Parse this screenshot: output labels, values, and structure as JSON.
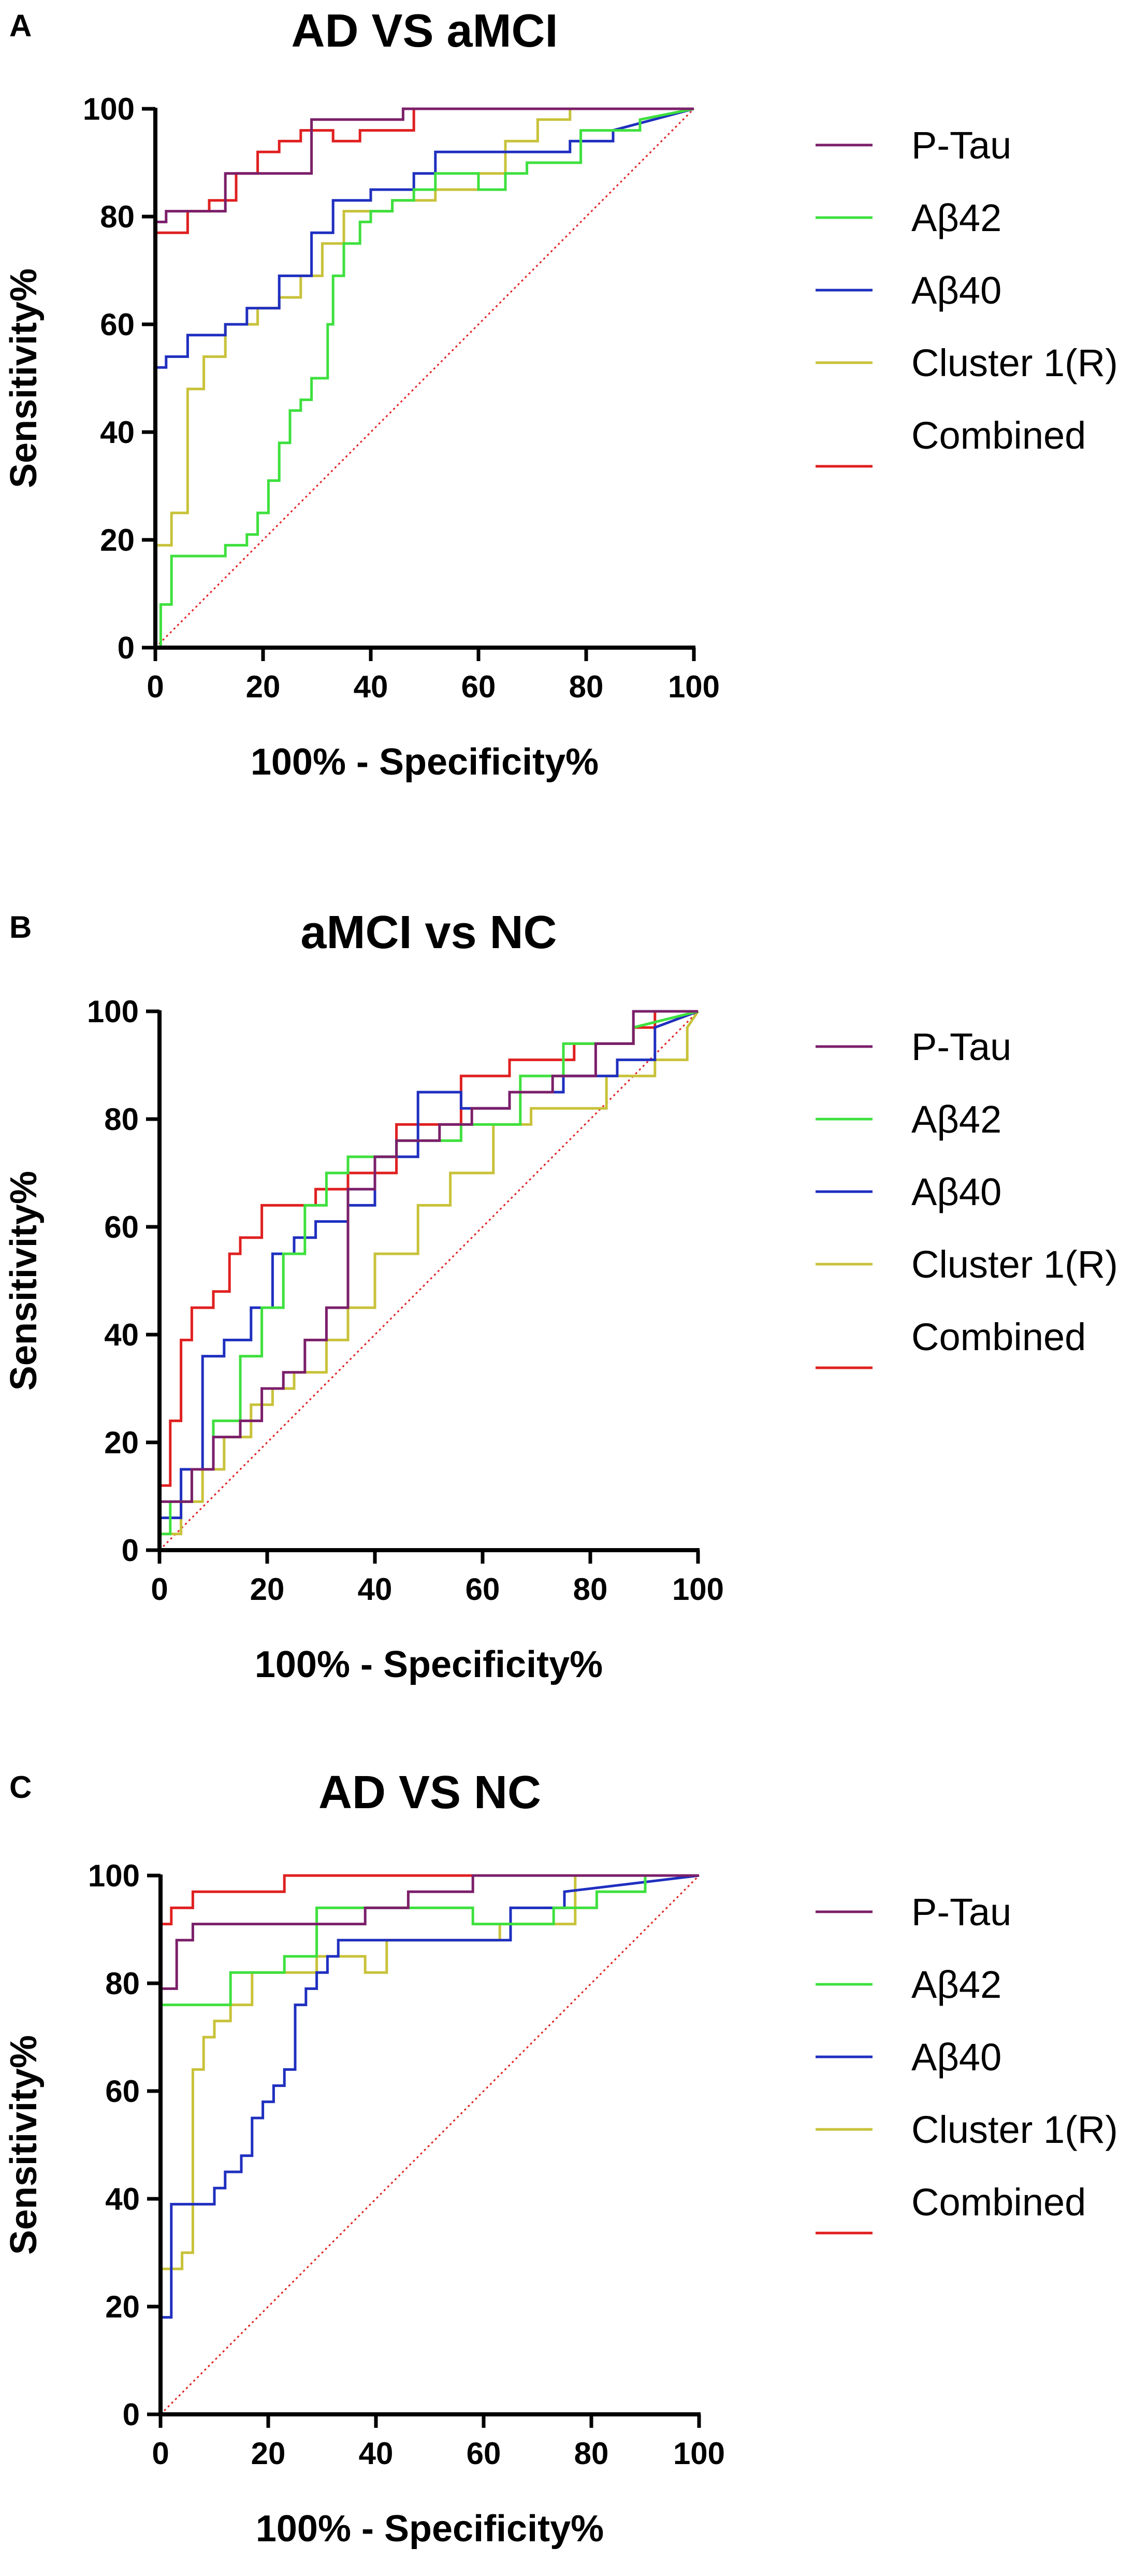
{
  "colors": {
    "ptau": "#7b1f6a",
    "abeta42": "#3ee03e",
    "abeta40": "#1f2fbf",
    "cluster1": "#c8c23a",
    "combined": "#e02020",
    "reference": "#e02020"
  },
  "chart_data": [
    {
      "panel": "A",
      "type": "line",
      "title": "AD VS aMCI",
      "xlabel": "100% - Specificity%",
      "ylabel": "Sensitivity%",
      "xlim": [
        0,
        100
      ],
      "ylim": [
        0,
        100
      ],
      "xticks": [
        "0",
        "20",
        "40",
        "60",
        "80",
        "100"
      ],
      "yticks": [
        "0",
        "20",
        "40",
        "60",
        "80",
        "100"
      ],
      "legend_position": "right",
      "reference_diagonal": true,
      "series": [
        {
          "name": "P-Tau",
          "color_key": "ptau",
          "x": [
            0,
            0,
            2,
            2,
            13,
            13,
            29,
            29,
            46,
            46,
            100
          ],
          "y": [
            0,
            79,
            79,
            81,
            81,
            88,
            88,
            98,
            98,
            100,
            100
          ]
        },
        {
          "name": "Aβ42",
          "color_key": "abeta42",
          "x": [
            0,
            1,
            1,
            3,
            3,
            13,
            13,
            17,
            17,
            19,
            19,
            21,
            21,
            23,
            23,
            25,
            25,
            27,
            27,
            29,
            29,
            32,
            32,
            33,
            33,
            35,
            35,
            38,
            38,
            40,
            40,
            44,
            44,
            48,
            48,
            52,
            52,
            60,
            60,
            65,
            65,
            69,
            69,
            79,
            79,
            90,
            90,
            100
          ],
          "y": [
            0,
            0,
            8,
            8,
            17,
            17,
            19,
            19,
            21,
            21,
            25,
            25,
            31,
            31,
            38,
            38,
            44,
            44,
            46,
            46,
            50,
            50,
            60,
            60,
            69,
            69,
            75,
            75,
            79,
            79,
            81,
            81,
            83,
            83,
            85,
            85,
            88,
            88,
            85,
            85,
            88,
            88,
            90,
            90,
            96,
            96,
            98,
            100
          ]
        },
        {
          "name": "Aβ40",
          "color_key": "abeta40",
          "x": [
            0,
            0,
            2,
            2,
            6,
            6,
            13,
            13,
            17,
            17,
            23,
            23,
            29,
            29,
            33,
            33,
            40,
            40,
            48,
            48,
            52,
            52,
            77,
            77,
            85,
            85,
            100
          ],
          "y": [
            0,
            52,
            52,
            54,
            54,
            58,
            58,
            60,
            60,
            63,
            63,
            69,
            69,
            77,
            77,
            83,
            83,
            85,
            85,
            88,
            88,
            92,
            92,
            94,
            94,
            96,
            100
          ]
        },
        {
          "name": "Cluster 1(R)",
          "color_key": "cluster1",
          "x": [
            0,
            0,
            3,
            3,
            6,
            6,
            9,
            9,
            13,
            13,
            19,
            19,
            23,
            23,
            27,
            27,
            31,
            31,
            35,
            35,
            44,
            44,
            52,
            52,
            60,
            60,
            65,
            65,
            71,
            71,
            77,
            77,
            100
          ],
          "y": [
            0,
            19,
            19,
            25,
            25,
            48,
            48,
            54,
            54,
            60,
            60,
            63,
            63,
            65,
            65,
            69,
            69,
            75,
            75,
            81,
            81,
            83,
            83,
            85,
            85,
            88,
            88,
            94,
            94,
            98,
            98,
            100,
            100
          ]
        },
        {
          "name": "Combined",
          "color_key": "combined",
          "x": [
            0,
            0,
            6,
            6,
            10,
            10,
            15,
            15,
            19,
            19,
            23,
            23,
            27,
            27,
            33,
            33,
            38,
            38,
            48,
            48,
            100
          ],
          "y": [
            0,
            77,
            77,
            81,
            81,
            83,
            83,
            88,
            88,
            92,
            92,
            94,
            94,
            96,
            96,
            94,
            94,
            96,
            96,
            100,
            100
          ]
        }
      ]
    },
    {
      "panel": "B",
      "type": "line",
      "title": "aMCI vs NC",
      "xlabel": "100% - Specificity%",
      "ylabel": "Sensitivity%",
      "xlim": [
        0,
        100
      ],
      "ylim": [
        0,
        100
      ],
      "xticks": [
        "0",
        "20",
        "40",
        "60",
        "80",
        "100"
      ],
      "yticks": [
        "0",
        "20",
        "40",
        "60",
        "80",
        "100"
      ],
      "legend_position": "right",
      "reference_diagonal": true,
      "series": [
        {
          "name": "P-Tau",
          "color_key": "ptau",
          "x": [
            0,
            0,
            6,
            6,
            10,
            10,
            15,
            15,
            19,
            19,
            23,
            23,
            27,
            27,
            31,
            31,
            35,
            35,
            40,
            40,
            44,
            44,
            52,
            52,
            58,
            58,
            65,
            65,
            73,
            73,
            81,
            81,
            88,
            88,
            100
          ],
          "y": [
            0,
            9,
            9,
            15,
            15,
            21,
            21,
            24,
            24,
            30,
            30,
            33,
            33,
            39,
            39,
            45,
            45,
            67,
            67,
            73,
            73,
            76,
            76,
            79,
            79,
            82,
            82,
            85,
            85,
            88,
            88,
            94,
            94,
            100,
            100
          ]
        },
        {
          "name": "Aβ42",
          "color_key": "abeta42",
          "x": [
            0,
            0,
            2,
            2,
            6,
            6,
            10,
            10,
            15,
            15,
            19,
            19,
            23,
            23,
            27,
            27,
            31,
            31,
            35,
            35,
            44,
            44,
            56,
            56,
            67,
            67,
            75,
            75,
            88,
            88,
            100
          ],
          "y": [
            0,
            3,
            3,
            9,
            9,
            15,
            15,
            24,
            24,
            36,
            36,
            45,
            45,
            55,
            55,
            64,
            64,
            70,
            70,
            73,
            73,
            76,
            76,
            79,
            79,
            88,
            88,
            94,
            94,
            97,
            100
          ]
        },
        {
          "name": "Aβ40",
          "color_key": "abeta40",
          "x": [
            0,
            0,
            4,
            4,
            8,
            8,
            12,
            12,
            17,
            17,
            21,
            21,
            25,
            25,
            29,
            29,
            35,
            35,
            40,
            40,
            48,
            48,
            56,
            56,
            65,
            65,
            75,
            75,
            85,
            85,
            92,
            92,
            100
          ],
          "y": [
            0,
            6,
            6,
            15,
            15,
            36,
            36,
            39,
            39,
            45,
            45,
            55,
            55,
            58,
            58,
            61,
            61,
            64,
            64,
            73,
            73,
            85,
            85,
            82,
            82,
            85,
            85,
            88,
            88,
            91,
            91,
            97,
            100
          ]
        },
        {
          "name": "Cluster 1(R)",
          "color_key": "cluster1",
          "x": [
            0,
            0,
            4,
            4,
            8,
            8,
            12,
            12,
            17,
            17,
            21,
            21,
            25,
            25,
            31,
            31,
            35,
            35,
            40,
            40,
            48,
            48,
            54,
            54,
            62,
            62,
            69,
            69,
            83,
            83,
            92,
            92,
            98,
            98,
            100
          ],
          "y": [
            0,
            3,
            3,
            9,
            9,
            15,
            15,
            21,
            21,
            27,
            27,
            30,
            30,
            33,
            33,
            39,
            39,
            45,
            45,
            55,
            55,
            64,
            64,
            70,
            70,
            79,
            79,
            82,
            82,
            88,
            88,
            91,
            91,
            97,
            100
          ]
        },
        {
          "name": "Combined",
          "color_key": "combined",
          "x": [
            0,
            0,
            2,
            2,
            4,
            4,
            6,
            6,
            10,
            10,
            13,
            13,
            15,
            15,
            19,
            19,
            29,
            29,
            35,
            35,
            44,
            44,
            56,
            56,
            65,
            65,
            77,
            77,
            88,
            88,
            92,
            92,
            100
          ],
          "y": [
            0,
            12,
            12,
            24,
            24,
            39,
            39,
            45,
            45,
            48,
            48,
            55,
            55,
            58,
            58,
            64,
            64,
            67,
            67,
            70,
            70,
            79,
            79,
            88,
            88,
            91,
            91,
            94,
            94,
            97,
            97,
            100,
            100
          ]
        }
      ]
    },
    {
      "panel": "C",
      "type": "line",
      "title": "AD VS NC",
      "xlabel": "100% - Specificity%",
      "ylabel": "Sensitivity%",
      "xlim": [
        0,
        100
      ],
      "ylim": [
        0,
        100
      ],
      "xticks": [
        "0",
        "20",
        "40",
        "60",
        "80",
        "100"
      ],
      "yticks": [
        "0",
        "20",
        "40",
        "60",
        "80",
        "100"
      ],
      "legend_position": "right",
      "reference_diagonal": true,
      "series": [
        {
          "name": "P-Tau",
          "color_key": "ptau",
          "x": [
            0,
            0,
            3,
            3,
            6,
            6,
            38,
            38,
            46,
            46,
            58,
            58,
            100
          ],
          "y": [
            0,
            79,
            79,
            88,
            88,
            91,
            91,
            94,
            94,
            97,
            97,
            100,
            100
          ]
        },
        {
          "name": "Aβ42",
          "color_key": "abeta42",
          "x": [
            0,
            0,
            13,
            13,
            23,
            23,
            29,
            29,
            58,
            58,
            73,
            73,
            81,
            81,
            90,
            90,
            100
          ],
          "y": [
            0,
            76,
            76,
            82,
            82,
            85,
            85,
            94,
            94,
            91,
            91,
            94,
            94,
            97,
            97,
            100,
            100
          ]
        },
        {
          "name": "Aβ40",
          "color_key": "abeta40",
          "x": [
            0,
            0,
            2,
            2,
            4,
            4,
            10,
            10,
            12,
            12,
            15,
            15,
            17,
            17,
            19,
            19,
            21,
            21,
            23,
            23,
            25,
            25,
            27,
            27,
            29,
            29,
            31,
            31,
            33,
            33,
            65,
            65,
            75,
            75,
            100
          ],
          "y": [
            0,
            18,
            18,
            39,
            39,
            39,
            39,
            42,
            42,
            45,
            45,
            48,
            48,
            55,
            55,
            58,
            58,
            61,
            61,
            64,
            64,
            76,
            76,
            79,
            79,
            82,
            82,
            85,
            85,
            88,
            88,
            94,
            94,
            97,
            100
          ]
        },
        {
          "name": "Cluster 1(R)",
          "color_key": "cluster1",
          "x": [
            0,
            0,
            4,
            4,
            6,
            6,
            8,
            8,
            10,
            10,
            13,
            13,
            17,
            17,
            29,
            29,
            38,
            38,
            42,
            42,
            63,
            63,
            77,
            77,
            100
          ],
          "y": [
            0,
            27,
            27,
            30,
            30,
            64,
            64,
            70,
            70,
            73,
            73,
            76,
            76,
            82,
            82,
            85,
            85,
            82,
            82,
            88,
            88,
            91,
            91,
            100,
            100
          ]
        },
        {
          "name": "Combined",
          "color_key": "combined",
          "x": [
            0,
            0,
            2,
            2,
            6,
            6,
            23,
            23,
            100
          ],
          "y": [
            0,
            91,
            91,
            94,
            94,
            97,
            97,
            100,
            100
          ]
        }
      ]
    }
  ]
}
